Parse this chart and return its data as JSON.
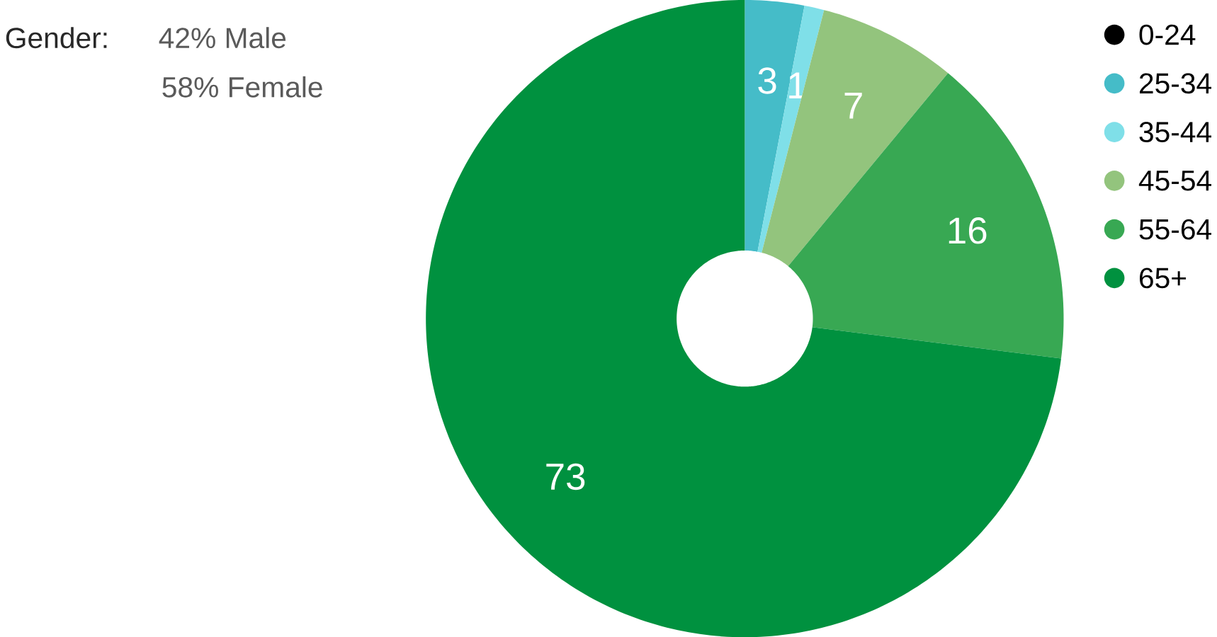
{
  "chart_data": {
    "type": "donut",
    "categories": [
      "0-24",
      "25-34",
      "35-44",
      "45-54",
      "55-64",
      "65+"
    ],
    "values": [
      0,
      3,
      1,
      7,
      16,
      73
    ],
    "colors": [
      "#000000",
      "#45bcc8",
      "#7fdfe8",
      "#93c47d",
      "#38a853",
      "#00913f"
    ],
    "value_labels": [
      null,
      "3",
      "1",
      "7",
      "16",
      "73"
    ],
    "legend": "right",
    "annotations": [
      "Gender:",
      "42% Male",
      "58% Female"
    ]
  }
}
